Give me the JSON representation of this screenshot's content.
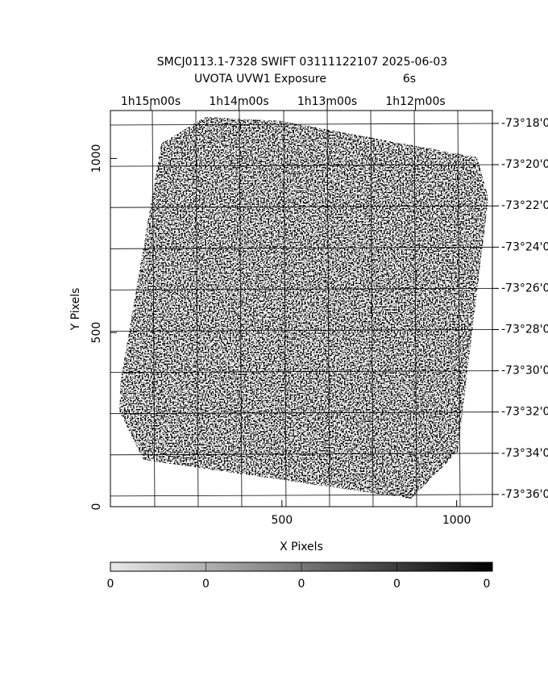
{
  "chart_data": {
    "type": "image",
    "title": "SMCJ0113.1-7328 SWIFT 03111122107 2025-06-03",
    "subtitle": "UVOTA UVW1 Exposure",
    "exposure": "6s",
    "x_label": "X Pixels",
    "y_label": "Y Pixels",
    "xlim": [
      0,
      1100
    ],
    "ylim": [
      0,
      1140
    ],
    "xticks": [
      500,
      1000
    ],
    "yticks": [
      0,
      500,
      1000
    ],
    "ra_labels": [
      "1h15m00s",
      "1h14m00s",
      "1h13m00s",
      "1h12m00s"
    ],
    "dec_labels": [
      "-73°18'0",
      "-73°20'0",
      "-73°22'0",
      "-73°24'0",
      "-73°26'0",
      "-73°28'0",
      "-73°30'0",
      "-73°32'0",
      "-73°34'0",
      "-73°36'0"
    ],
    "colorbar_labels": [
      "0",
      "0",
      "0",
      "0",
      "0"
    ]
  }
}
